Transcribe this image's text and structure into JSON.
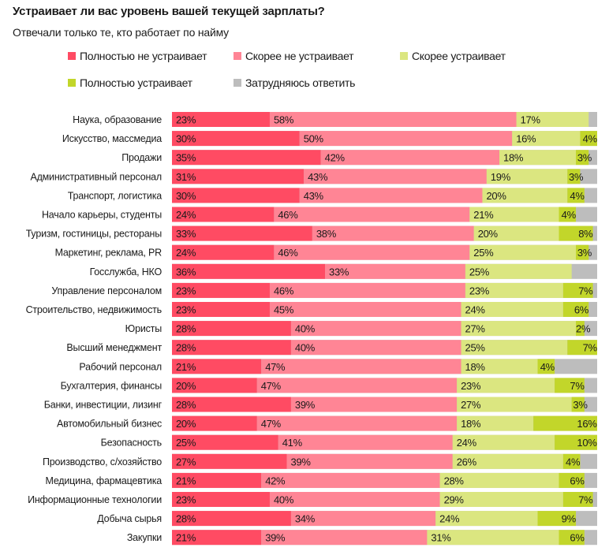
{
  "header": {
    "title": "Устраивает ли вас уровень вашей текущей зарплаты?",
    "subtitle": "Отвечали только те, кто работает по найму"
  },
  "chart_data": {
    "type": "bar",
    "orientation": "horizontal",
    "stacked": true,
    "percent_stacked": true,
    "title": "Устраивает ли вас уровень вашей текущей зарплаты?",
    "subtitle": "Отвечали только те, кто работает по найму",
    "xlabel": "",
    "ylabel": "",
    "xlim": [
      0,
      100
    ],
    "grid": false,
    "legend_position": "top",
    "unit": "%",
    "categories": [
      "Наука, образование",
      "Искусство, массмедиа",
      "Продажи",
      "Административный персонал",
      "Транспорт, логистика",
      "Начало карьеры, студенты",
      "Туризм, гостиницы, рестораны",
      "Маркетинг, реклама, PR",
      "Госслужба, НКО",
      "Управление персоналом",
      "Строительство, недвижимость",
      "Юристы",
      "Высший менеджмент",
      "Рабочий персонал",
      "Бухгалтерия, финансы",
      "Банки, инвестиции, лизинг",
      "Автомобильный бизнес",
      "Безопасность",
      "Производство, с/хозяйство",
      "Медицина, фармацевтика",
      "Информационные технологии",
      "Добыча сырья",
      "Закупки"
    ],
    "series": [
      {
        "name": "Полностью не устраивает",
        "color": "#ff4b63",
        "values": [
          23,
          30,
          35,
          31,
          30,
          24,
          33,
          24,
          36,
          23,
          23,
          28,
          28,
          21,
          20,
          28,
          20,
          25,
          27,
          21,
          23,
          28,
          21
        ]
      },
      {
        "name": "Скорее не устраивает",
        "color": "#ff8595",
        "values": [
          58,
          50,
          42,
          43,
          43,
          46,
          38,
          46,
          33,
          46,
          45,
          40,
          40,
          47,
          47,
          39,
          47,
          41,
          39,
          42,
          40,
          34,
          39
        ]
      },
      {
        "name": "Скорее устраивает",
        "color": "#dbe680",
        "values": [
          17,
          16,
          18,
          19,
          20,
          21,
          20,
          25,
          25,
          23,
          24,
          27,
          25,
          18,
          23,
          27,
          18,
          24,
          26,
          28,
          29,
          24,
          31
        ]
      },
      {
        "name": "Полностью устраивает",
        "color": "#c2d62a",
        "values": [
          null,
          4,
          3,
          3,
          4,
          4,
          8,
          3,
          null,
          7,
          6,
          2,
          7,
          4,
          7,
          3,
          16,
          10,
          4,
          6,
          7,
          9,
          6
        ]
      },
      {
        "name": "Затрудняюсь ответить",
        "color": "#bdbdbd",
        "values": [
          null,
          null,
          null,
          null,
          null,
          null,
          null,
          null,
          null,
          null,
          null,
          null,
          null,
          null,
          null,
          null,
          null,
          null,
          null,
          null,
          null,
          null,
          null
        ]
      }
    ]
  }
}
